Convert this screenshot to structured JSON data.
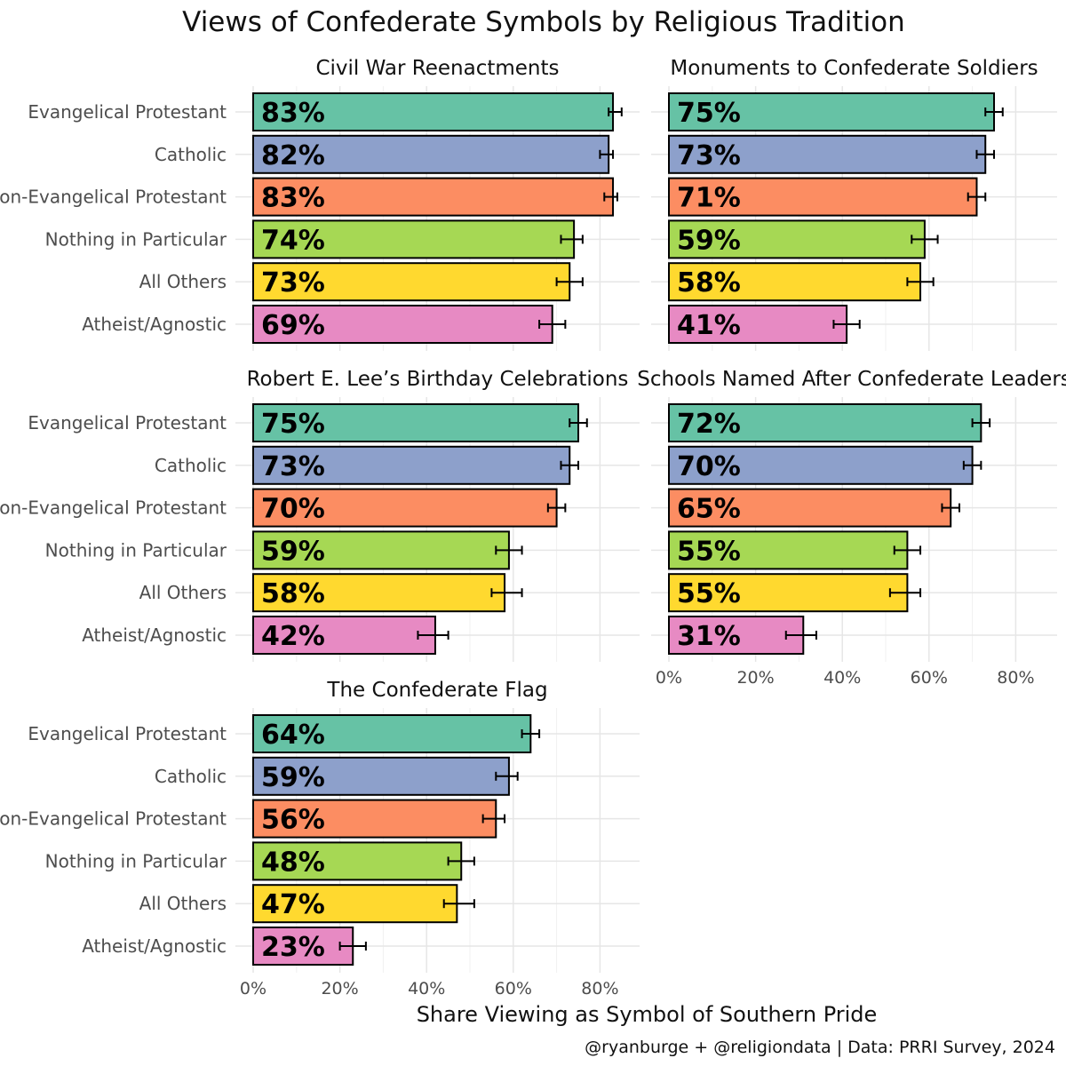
{
  "chart_data": {
    "type": "bar",
    "orientation": "horizontal",
    "title": "Views of Confederate Symbols by Religious Tradition",
    "xlabel": "Share Viewing as Symbol of Southern Pride",
    "caption": "@ryanburge + @religiondata | Data: PRRI Survey, 2024",
    "xlim": [
      0,
      0.9
    ],
    "x_ticks": [
      0,
      0.2,
      0.4,
      0.6,
      0.8
    ],
    "x_tick_labels": [
      "0%",
      "20%",
      "40%",
      "60%",
      "80%"
    ],
    "categories": [
      "Evangelical Protestant",
      "Catholic",
      "Non-Evangelical Protestant",
      "Nothing in Particular",
      "All Others",
      "Atheist/Agnostic"
    ],
    "colors": [
      "#66c2a5",
      "#8da0cb",
      "#fc8d62",
      "#a6d854",
      "#ffd92f",
      "#e78ac3"
    ],
    "panels": [
      {
        "title": "Civil War Reenactments",
        "values": [
          0.83,
          0.82,
          0.83,
          0.74,
          0.73,
          0.69
        ],
        "labels": [
          "83%",
          "82%",
          "83%",
          "74%",
          "73%",
          "69%"
        ],
        "err_low": [
          0.82,
          0.8,
          0.81,
          0.71,
          0.7,
          0.66
        ],
        "err_high": [
          0.85,
          0.83,
          0.84,
          0.76,
          0.76,
          0.72
        ]
      },
      {
        "title": "Monuments to Confederate Soldiers",
        "values": [
          0.75,
          0.73,
          0.71,
          0.59,
          0.58,
          0.41
        ],
        "labels": [
          "75%",
          "73%",
          "71%",
          "59%",
          "58%",
          "41%"
        ],
        "err_low": [
          0.73,
          0.71,
          0.69,
          0.56,
          0.55,
          0.38
        ],
        "err_high": [
          0.77,
          0.75,
          0.73,
          0.62,
          0.61,
          0.44
        ]
      },
      {
        "title": "Robert E. Lee’s Birthday Celebrations",
        "values": [
          0.75,
          0.73,
          0.7,
          0.59,
          0.58,
          0.42
        ],
        "labels": [
          "75%",
          "73%",
          "70%",
          "59%",
          "58%",
          "42%"
        ],
        "err_low": [
          0.73,
          0.71,
          0.68,
          0.56,
          0.55,
          0.38
        ],
        "err_high": [
          0.77,
          0.75,
          0.72,
          0.62,
          0.62,
          0.45
        ]
      },
      {
        "title": "Schools Named After Confederate Leaders",
        "values": [
          0.72,
          0.7,
          0.65,
          0.55,
          0.55,
          0.31
        ],
        "labels": [
          "72%",
          "70%",
          "65%",
          "55%",
          "55%",
          "31%"
        ],
        "err_low": [
          0.7,
          0.68,
          0.63,
          0.52,
          0.51,
          0.27
        ],
        "err_high": [
          0.74,
          0.72,
          0.67,
          0.58,
          0.58,
          0.34
        ]
      },
      {
        "title": "The Confederate Flag",
        "values": [
          0.64,
          0.59,
          0.56,
          0.48,
          0.47,
          0.23
        ],
        "labels": [
          "64%",
          "59%",
          "56%",
          "48%",
          "47%",
          "23%"
        ],
        "err_low": [
          0.62,
          0.56,
          0.53,
          0.45,
          0.44,
          0.2
        ],
        "err_high": [
          0.66,
          0.61,
          0.58,
          0.51,
          0.51,
          0.26
        ]
      }
    ]
  }
}
